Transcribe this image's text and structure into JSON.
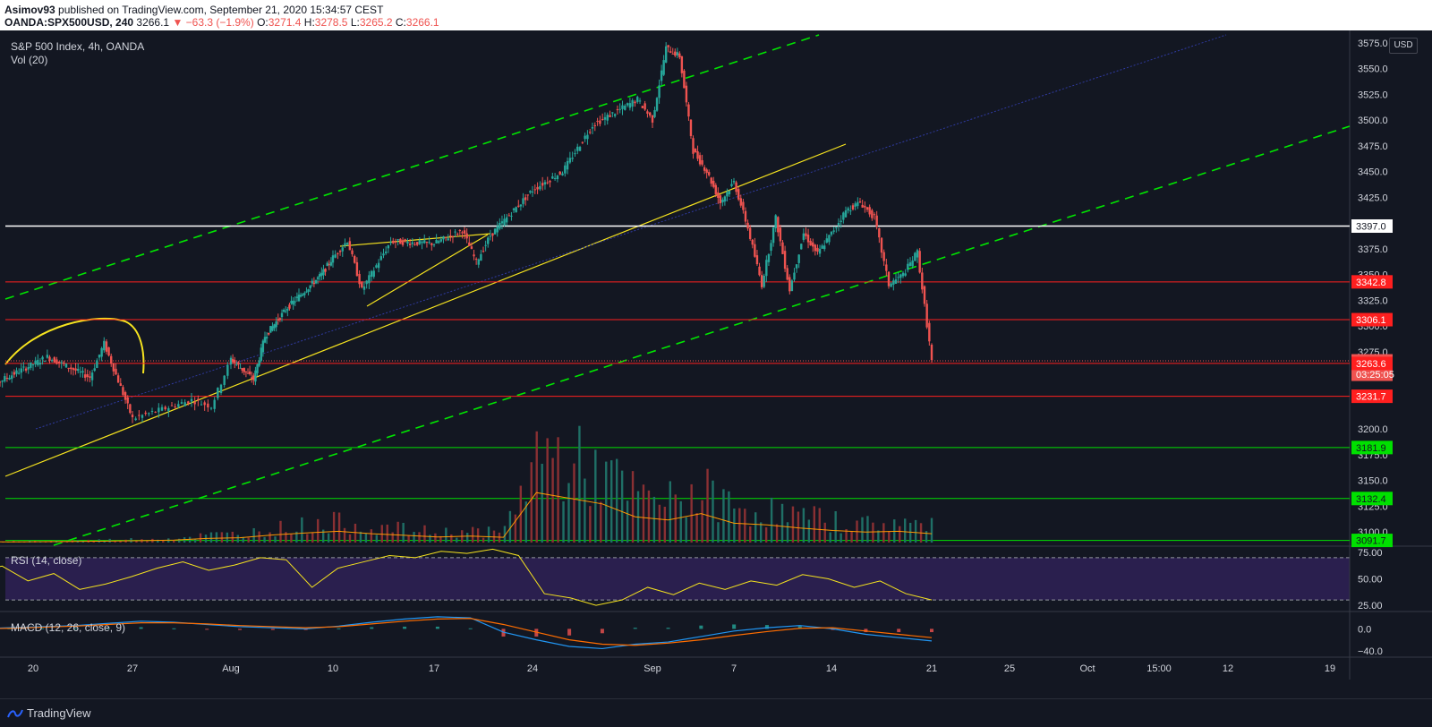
{
  "header": {
    "publisher": "Asimov93",
    "published_text": "published on TradingView.com, September 21, 2020 15:34:57 CEST",
    "symbol": "OANDA:SPX500USD, 240",
    "last": "3266.1",
    "change": "▼ −63.3 (−1.9%)",
    "o_label": "O:",
    "o": "3271.4",
    "h_label": "H:",
    "h": "3278.5",
    "l_label": "L:",
    "l": "3265.2",
    "c_label": "C:",
    "c": "3266.1"
  },
  "legend": {
    "title": "S&P 500 Index, 4h, OANDA",
    "vol": "Vol (20)",
    "rsi": "RSI (14, close)",
    "macd": "MACD (12, 26, close, 9)"
  },
  "currency_button": "USD",
  "footer": {
    "brand": "TradingView"
  },
  "colors": {
    "background": "#131722",
    "up": "#26a69a",
    "down": "#ef5350",
    "green_channel": "#00e600",
    "yellow": "#f5e31f",
    "red_level": "#ff1f1f",
    "green_level": "#00e000",
    "white_level": "#ffffff",
    "rsi_band": "#2a1f4e"
  },
  "chart_data": [
    {
      "type": "candlestick",
      "title": "S&P 500 Index, 4h, OANDA",
      "x_ticks": [
        "20",
        "27",
        "Aug",
        "10",
        "17",
        "24",
        "Sep",
        "7",
        "14",
        "21",
        "25",
        "Oct",
        "15:00",
        "12",
        "19"
      ],
      "y_ticks": [
        "3575.0",
        "3550.0",
        "3525.0",
        "3500.0",
        "3475.0",
        "3450.0",
        "3425.0",
        "3375.0",
        "3350.0",
        "3325.0",
        "3300.0",
        "3275.0",
        "3200.0",
        "3175.0",
        "3150.0",
        "3125.0",
        "3100.0"
      ],
      "ylim": [
        3087,
        3587
      ],
      "price_tags": [
        {
          "label": "3397.0",
          "kind": "white"
        },
        {
          "label": "3342.8",
          "kind": "red"
        },
        {
          "label": "3306.1",
          "kind": "red"
        },
        {
          "label": "3266.1",
          "kind": "last"
        },
        {
          "label": "03:25:05",
          "kind": "timer"
        },
        {
          "label": "3263.6",
          "kind": "red"
        },
        {
          "label": "3231.7",
          "kind": "red"
        },
        {
          "label": "3181.9",
          "kind": "green"
        },
        {
          "label": "3132.4",
          "kind": "green"
        },
        {
          "label": "3091.7",
          "kind": "green"
        }
      ],
      "horizontal_levels": [
        3397.0,
        3342.8,
        3306.1,
        3263.6,
        3231.7,
        3181.9,
        3132.4,
        3091.7
      ],
      "path_waypoints": [
        [
          "Jul 16",
          3235
        ],
        [
          "Jul 21",
          3270
        ],
        [
          "Jul 24",
          3250
        ],
        [
          "Jul 25",
          3283
        ],
        [
          "Jul 27",
          3210
        ],
        [
          "Jul 30",
          3228
        ],
        [
          "Jul 31",
          3222
        ],
        [
          "Aug 1",
          3268
        ],
        [
          "Aug 3",
          3248
        ],
        [
          "Aug 4",
          3290
        ],
        [
          "Aug 6",
          3318
        ],
        [
          "Aug 9",
          3350
        ],
        [
          "Aug 11",
          3383
        ],
        [
          "Aug 12",
          3335
        ],
        [
          "Aug 14",
          3382
        ],
        [
          "Aug 17",
          3380
        ],
        [
          "Aug 19",
          3393
        ],
        [
          "Aug 20",
          3362
        ],
        [
          "Aug 21",
          3388
        ],
        [
          "Aug 24",
          3432
        ],
        [
          "Aug 26",
          3450
        ],
        [
          "Aug 28",
          3495
        ],
        [
          "Aug 31",
          3520
        ],
        [
          "Sep 1",
          3500
        ],
        [
          "Sep 2",
          3570
        ],
        [
          "Sep 3",
          3562
        ],
        [
          "Sep 4",
          3470
        ],
        [
          "Sep 5",
          3450
        ],
        [
          "Sep 6",
          3420
        ],
        [
          "Sep 7",
          3440
        ],
        [
          "Sep 8",
          3395
        ],
        [
          "Sep 9",
          3340
        ],
        [
          "Sep 10",
          3405
        ],
        [
          "Sep 11",
          3335
        ],
        [
          "Sep 12",
          3390
        ],
        [
          "Sep 13",
          3370
        ],
        [
          "Sep 14",
          3390
        ],
        [
          "Sep 15",
          3412
        ],
        [
          "Sep 16",
          3420
        ],
        [
          "Sep 17",
          3405
        ],
        [
          "Sep 18",
          3340
        ],
        [
          "Sep 19",
          3350
        ],
        [
          "Sep 20",
          3372
        ],
        [
          "Sep 21",
          3266
        ]
      ]
    },
    {
      "type": "bar",
      "title": "Vol (20)",
      "ylim": [
        0,
        7000
      ],
      "series": [
        {
          "name": "Vol",
          "values": [
            120,
            90,
            110,
            140,
            180,
            240,
            300,
            520,
            600,
            950,
            1200,
            1400,
            1100,
            900,
            700,
            800,
            650,
            6200,
            5500,
            4800,
            3200,
            2800,
            3600,
            2400,
            2200,
            1800,
            1500,
            1300,
            1400,
            1100
          ]
        }
      ]
    },
    {
      "type": "line",
      "title": "RSI (14, close)",
      "y_ticks": [
        "75.00",
        "50.00",
        "25.00"
      ],
      "ylim": [
        20,
        80
      ],
      "bands": [
        30,
        70
      ],
      "series": [
        {
          "name": "RSI",
          "values": [
            58,
            62,
            48,
            55,
            40,
            45,
            52,
            60,
            66,
            58,
            63,
            70,
            68,
            42,
            60,
            66,
            72,
            70,
            76,
            74,
            78,
            72,
            36,
            32,
            25,
            30,
            42,
            35,
            46,
            40,
            48,
            44,
            54,
            50,
            42,
            48,
            36,
            30
          ]
        }
      ]
    },
    {
      "type": "line",
      "title": "MACD (12, 26, close, 9)",
      "y_ticks": [
        "0.0",
        "−40.0"
      ],
      "ylim": [
        -50,
        30
      ],
      "series": [
        {
          "name": "MACD",
          "values": [
            0,
            2,
            4,
            6,
            10,
            14,
            12,
            8,
            4,
            2,
            0,
            5,
            12,
            18,
            22,
            20,
            -6,
            -20,
            -32,
            -36,
            -28,
            -24,
            -14,
            -4,
            2,
            6,
            0,
            -10,
            -16,
            -22
          ]
        },
        {
          "name": "Signal",
          "values": [
            0,
            1,
            3,
            5,
            8,
            11,
            11,
            9,
            6,
            4,
            2,
            4,
            9,
            14,
            18,
            19,
            8,
            -6,
            -20,
            -28,
            -30,
            -26,
            -20,
            -12,
            -5,
            1,
            2,
            -4,
            -10,
            -16
          ]
        }
      ]
    }
  ]
}
